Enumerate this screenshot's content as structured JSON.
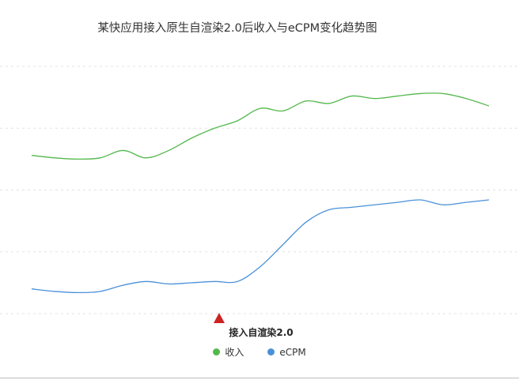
{
  "chart_data": {
    "type": "line",
    "title": "某快应用接入原生自渲染2.0后收入与eCPM变化趋势图",
    "xlabel": "",
    "ylabel": "",
    "grid": true,
    "legend_position": "bottom",
    "ylim": [
      0,
      100
    ],
    "x": [
      0,
      5,
      10,
      15,
      20,
      25,
      30,
      35,
      40,
      45,
      50,
      55,
      60,
      65,
      70,
      75,
      80,
      85,
      90,
      95,
      100
    ],
    "series": [
      {
        "name": "收入",
        "color": "#52b84b",
        "values": [
          64,
          63,
          62.5,
          63,
          66,
          63,
          66,
          71,
          75,
          78,
          83,
          82,
          86,
          85,
          88,
          87,
          88,
          89,
          89,
          87,
          84
        ]
      },
      {
        "name": "eCPM",
        "color": "#4a90d9",
        "values": [
          10,
          9,
          8.5,
          9,
          11.5,
          13,
          12,
          12.5,
          13,
          13,
          19,
          28,
          37,
          42,
          43,
          44,
          45,
          46,
          44,
          45,
          46
        ]
      }
    ],
    "annotations": [
      {
        "label": "接入自渲染2.0",
        "x": 41,
        "marker": "triangle",
        "color": "#cc2222"
      }
    ]
  }
}
